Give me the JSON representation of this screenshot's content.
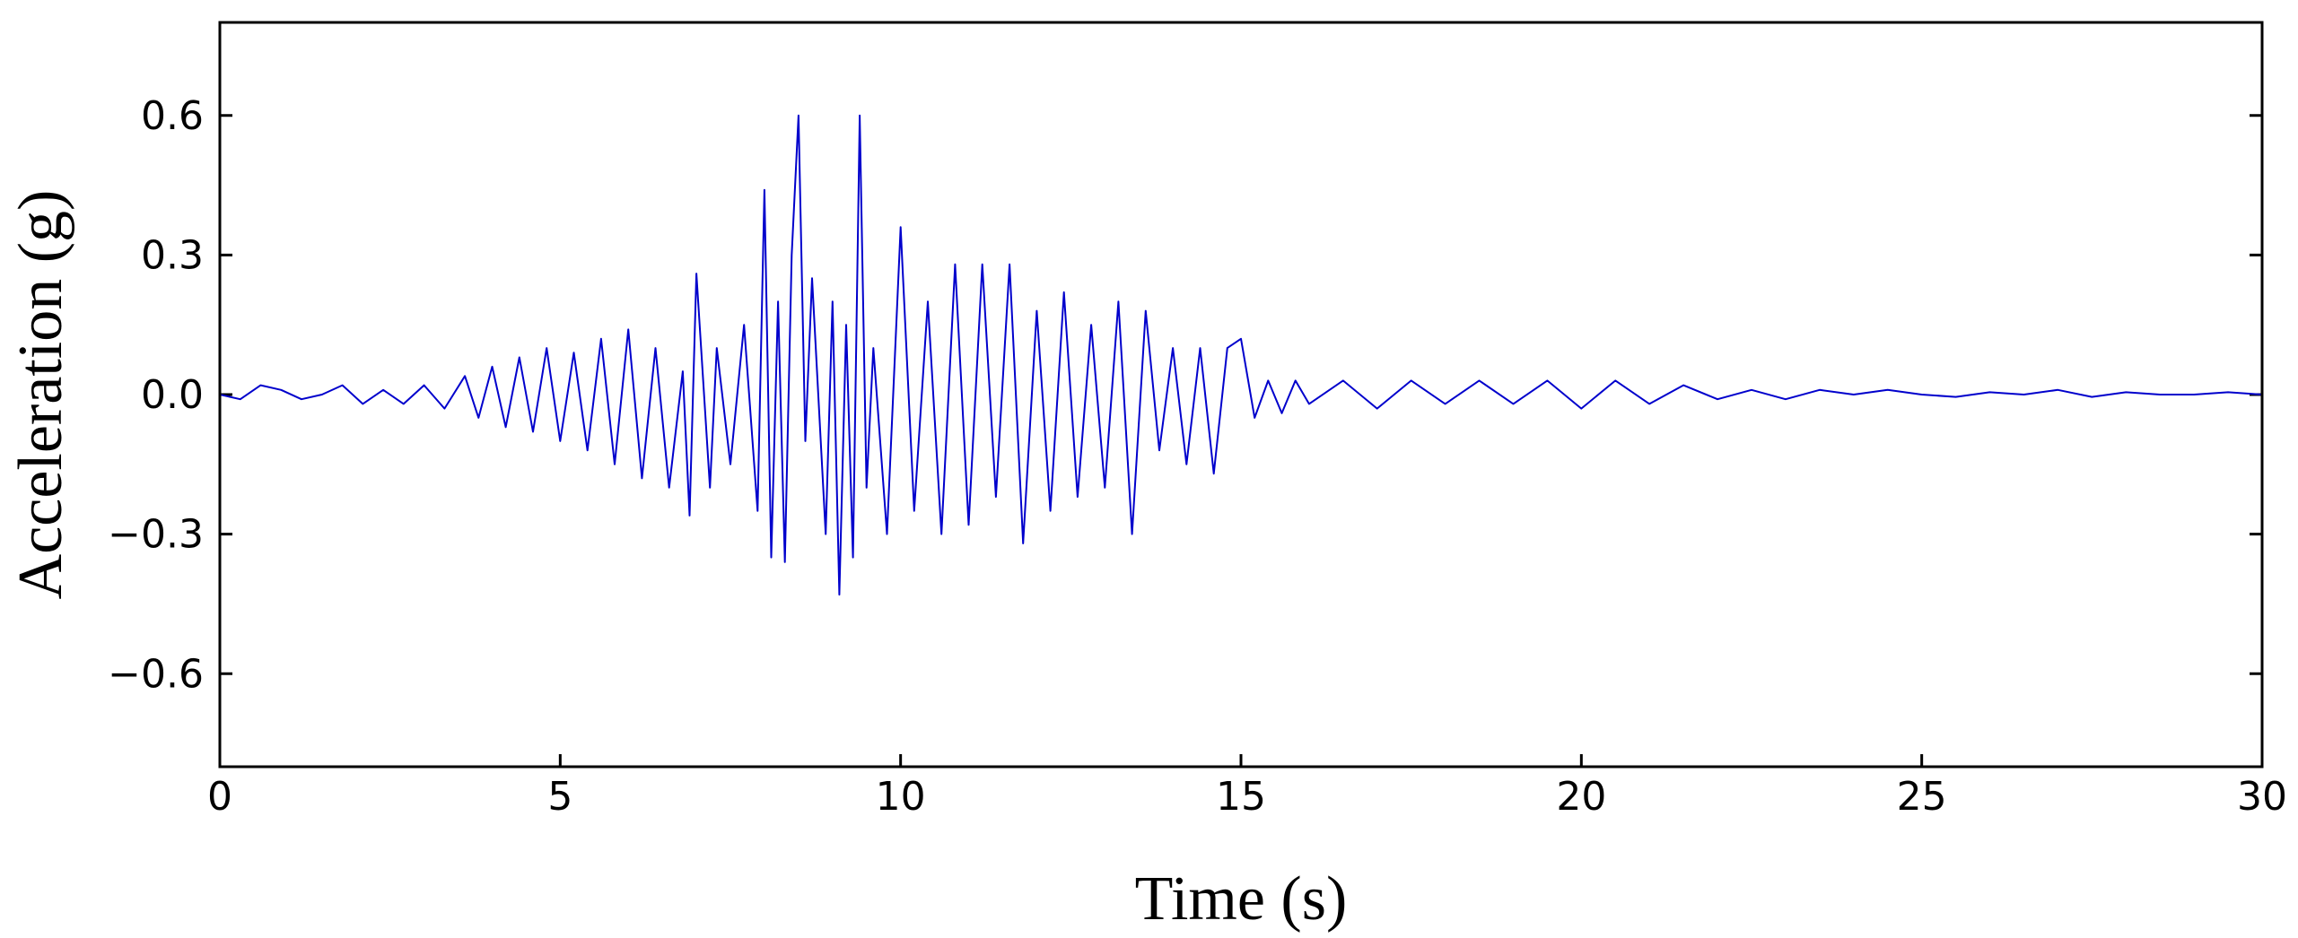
{
  "chart_data": {
    "type": "line",
    "title": "",
    "xlabel": "Time (s)",
    "ylabel": "Acceleration (g)",
    "xlim": [
      0,
      30
    ],
    "ylim": [
      -0.8,
      0.8
    ],
    "xticks": [
      0,
      5,
      10,
      15,
      20,
      25,
      30
    ],
    "xtick_labels": [
      "0",
      "5",
      "10",
      "15",
      "20",
      "25",
      "30"
    ],
    "yticks": [
      0.6,
      0.3,
      0.0,
      -0.3,
      -0.6
    ],
    "ytick_labels": [
      "0.6",
      "0.3",
      "0.0",
      "−0.3",
      "−0.6"
    ],
    "grid": false,
    "legend": "none",
    "line_color": "#0000cc",
    "series": [
      {
        "x": [
          0,
          0.3,
          0.6,
          0.9,
          1.2,
          1.5,
          1.8,
          2.1,
          2.4,
          2.7,
          3.0,
          3.3,
          3.6,
          3.8,
          4.0,
          4.2,
          4.4,
          4.6,
          4.8,
          5.0,
          5.2,
          5.4,
          5.6,
          5.8,
          6.0,
          6.2,
          6.4,
          6.6,
          6.8,
          6.9,
          7.0,
          7.2,
          7.3,
          7.5,
          7.7,
          7.9,
          8.0,
          8.1,
          8.2,
          8.3,
          8.4,
          8.5,
          8.6,
          8.7,
          8.9,
          9.0,
          9.1,
          9.2,
          9.3,
          9.4,
          9.5,
          9.6,
          9.8,
          10.0,
          10.2,
          10.4,
          10.6,
          10.8,
          11.0,
          11.2,
          11.4,
          11.6,
          11.8,
          12.0,
          12.2,
          12.4,
          12.6,
          12.8,
          13.0,
          13.2,
          13.4,
          13.6,
          13.8,
          14.0,
          14.2,
          14.4,
          14.6,
          14.8,
          15.0,
          15.2,
          15.4,
          15.6,
          15.8,
          16.0,
          16.5,
          17.0,
          17.5,
          18.0,
          18.5,
          19.0,
          19.5,
          20.0,
          20.5,
          21.0,
          21.5,
          22.0,
          22.5,
          23.0,
          23.5,
          24.0,
          24.5,
          25.0,
          25.5,
          26.0,
          26.5,
          27.0,
          27.5,
          28.0,
          28.5,
          29.0,
          29.5,
          30.0
        ],
        "y": [
          0.0,
          -0.01,
          0.02,
          0.01,
          -0.01,
          0.0,
          0.02,
          -0.02,
          0.01,
          -0.02,
          0.02,
          -0.03,
          0.04,
          -0.05,
          0.06,
          -0.07,
          0.08,
          -0.08,
          0.1,
          -0.1,
          0.09,
          -0.12,
          0.12,
          -0.15,
          0.14,
          -0.18,
          0.1,
          -0.2,
          0.05,
          -0.26,
          0.26,
          -0.2,
          0.1,
          -0.15,
          0.15,
          -0.25,
          0.44,
          -0.35,
          0.2,
          -0.36,
          0.3,
          0.6,
          -0.1,
          0.25,
          -0.3,
          0.2,
          -0.43,
          0.15,
          -0.35,
          0.6,
          -0.2,
          0.1,
          -0.3,
          0.36,
          -0.25,
          0.2,
          -0.3,
          0.28,
          -0.28,
          0.28,
          -0.22,
          0.28,
          -0.32,
          0.18,
          -0.25,
          0.22,
          -0.22,
          0.15,
          -0.2,
          0.2,
          -0.3,
          0.18,
          -0.12,
          0.1,
          -0.15,
          0.1,
          -0.17,
          0.1,
          0.12,
          -0.05,
          0.03,
          -0.04,
          0.03,
          -0.02,
          0.03,
          -0.03,
          0.03,
          -0.02,
          0.03,
          -0.02,
          0.03,
          -0.03,
          0.03,
          -0.02,
          0.02,
          -0.01,
          0.01,
          -0.01,
          0.01,
          0.0,
          0.01,
          0.0,
          -0.005,
          0.005,
          0.0,
          0.01,
          -0.005,
          0.005,
          0.0,
          0.0,
          0.005,
          0.0
        ]
      }
    ]
  }
}
